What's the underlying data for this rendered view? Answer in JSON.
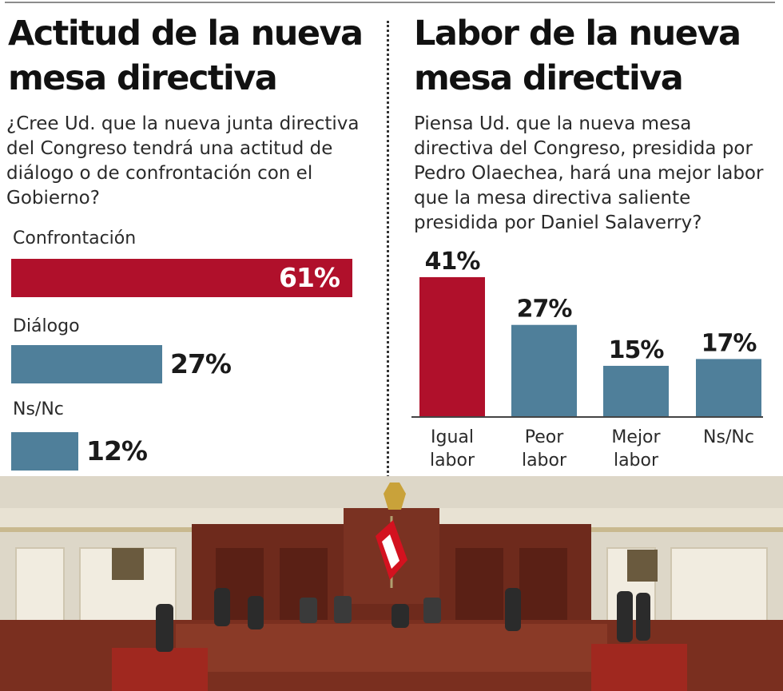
{
  "left": {
    "title_line1": "Actitud de la nueva",
    "title_line2": "mesa directiva",
    "question": "¿Cree Ud. que la nueva junta directiva del Congreso tendrá una actitud de diálogo o de confrontación con el Gobierno?"
  },
  "right": {
    "title_line1": "Labor de la nueva",
    "title_line2": "mesa directiva",
    "question": "Piensa Ud. que la nueva mesa directiva del Congreso, presidida por Pedro Olaechea, hará una mejor labor que la mesa directiva saliente presidida por Daniel Salaverry?"
  },
  "colors": {
    "highlight": "#b0102b",
    "base": "#4f7f9a"
  },
  "chart_data": [
    {
      "type": "bar",
      "orientation": "horizontal",
      "categories": [
        "Confrontación",
        "Diálogo",
        "Ns/Nc"
      ],
      "values": [
        61,
        27,
        12
      ],
      "value_labels": [
        "61%",
        "27%",
        "12%"
      ],
      "unit": "%",
      "highlight_index": 0
    },
    {
      "type": "bar",
      "orientation": "vertical",
      "categories": [
        [
          "Igual",
          "labor"
        ],
        [
          "Peor",
          "labor"
        ],
        [
          "Mejor",
          "labor"
        ],
        [
          "Ns/Nc"
        ]
      ],
      "values": [
        41,
        27,
        15,
        17
      ],
      "value_labels": [
        "41%",
        "27%",
        "15%",
        "17%"
      ],
      "unit": "%",
      "highlight_index": 0
    }
  ],
  "photo": {
    "flag_colors": [
      "#d3121f",
      "#ffffff"
    ]
  }
}
